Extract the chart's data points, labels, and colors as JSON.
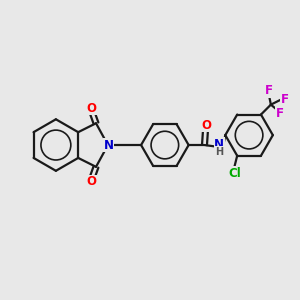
{
  "background_color": "#e8e8e8",
  "bond_color": "#1a1a1a",
  "atom_colors": {
    "O": "#ff0000",
    "N": "#0000cc",
    "Cl": "#00aa00",
    "F": "#cc00cc",
    "C": "#1a1a1a",
    "H": "#555555"
  },
  "figsize": [
    3.0,
    3.0
  ],
  "dpi": 100,
  "lw": 1.6,
  "font_size": 8.5
}
